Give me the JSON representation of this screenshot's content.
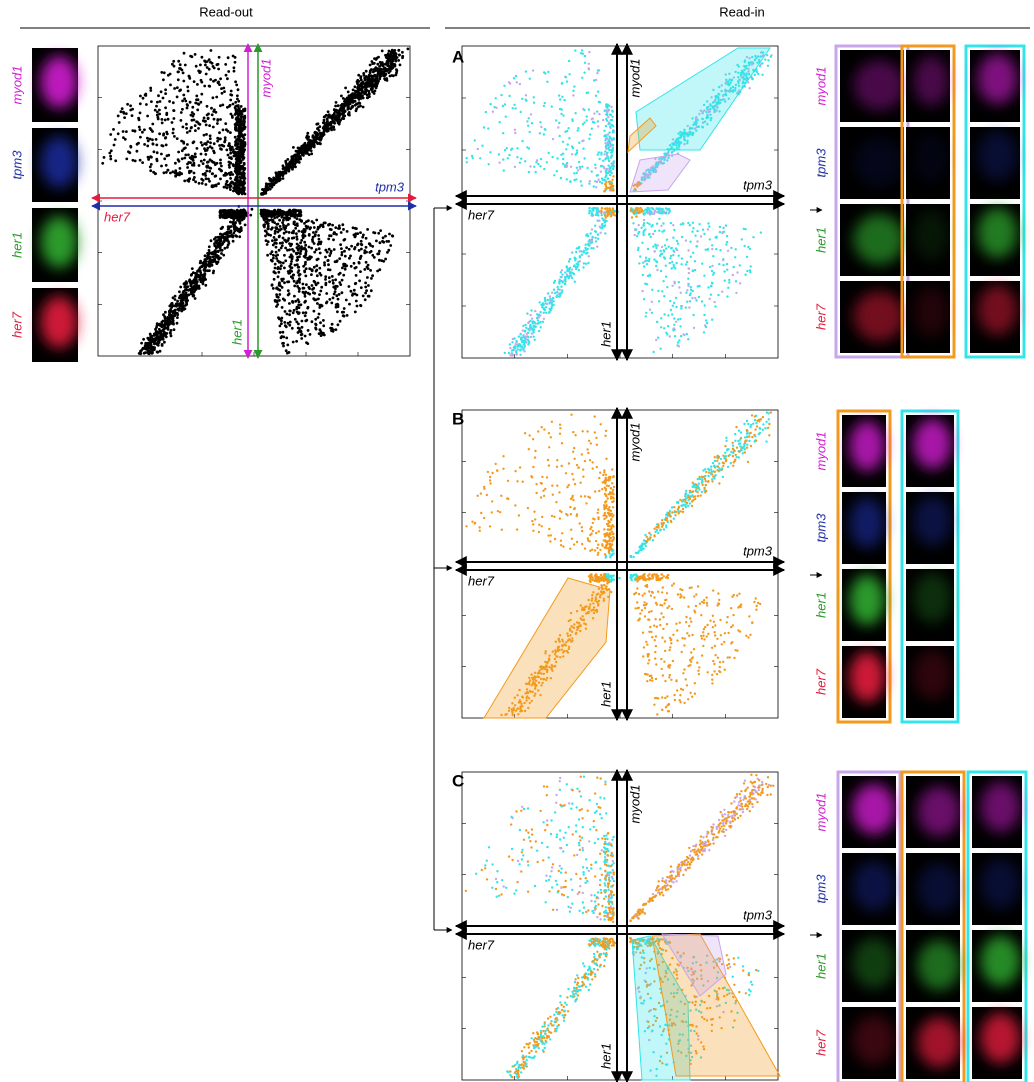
{
  "headers": {
    "read_out": "Read-out",
    "read_in": "Read-in"
  },
  "genes": [
    {
      "name": "myod1",
      "color": "#d21fd2"
    },
    {
      "name": "tpm3",
      "color": "#1f2fa8"
    },
    {
      "name": "her1",
      "color": "#2a9a2a"
    },
    {
      "name": "her7",
      "color": "#e41c3c"
    }
  ],
  "panels": [
    {
      "label": "A"
    },
    {
      "label": "B"
    },
    {
      "label": "C"
    }
  ]
}
